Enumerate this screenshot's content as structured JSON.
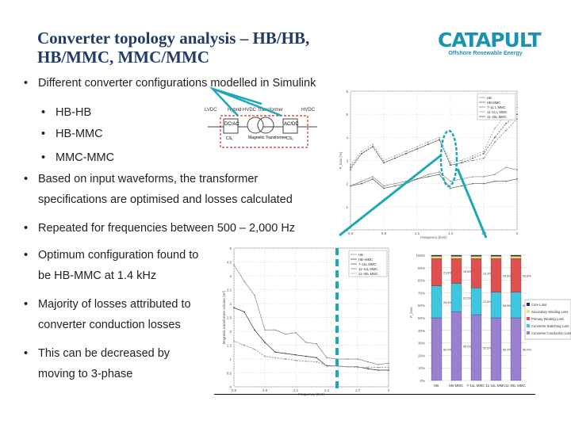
{
  "title": [
    "Converter topology analysis – HB/HB,",
    "HB/MMC, MMC/MMC"
  ],
  "logo": {
    "name": "CATAPULT",
    "tagline": "Offshore Renewable Energy"
  },
  "bullets": [
    {
      "text": "Different converter configurations modelled in Simulink",
      "level": 1
    },
    {
      "text": "HB-HB",
      "level": 2
    },
    {
      "text": "HB-MMC",
      "level": 2
    },
    {
      "text": "MMC-MMC",
      "level": 2
    },
    {
      "text": [
        "Based on input waveforms, the transformer",
        "specifications are optimised and losses calculated"
      ],
      "level": 1
    },
    {
      "text": "Repeated for frequencies between 500 – 2,000 Hz",
      "level": 1
    },
    {
      "text": [
        "Optimum configuration found to",
        "be HB-MMC at 1.4 kHz"
      ],
      "level": 1
    },
    {
      "text": [
        "Majority of losses attributed to",
        "converter conduction losses"
      ],
      "level": 1
    },
    {
      "text": [
        "This can be decreased by",
        "moving to 3-phase"
      ],
      "level": 1
    }
  ],
  "diagram": {
    "title": "Hybrid HVDC Transformer",
    "left": "LVDC",
    "right": "HVDC",
    "cs1": "DC/AC",
    "cs2": "AC/DC",
    "cs1_label": "CS₁",
    "cs2_label": "CS₂",
    "middle": "Magnetic Transformer"
  },
  "colors": {
    "accent": "#1aa9b5",
    "title": "#1f3a6b",
    "conduction": "#9b7fd0",
    "switching": "#3fc6e0",
    "primary": "#e05050",
    "secondary": "#e8e070",
    "core": "#1a3050"
  },
  "chart_data": [
    {
      "type": "line",
      "xlabel": "Frequency (kHz)",
      "ylabel": "P_loss (%)",
      "xlim": [
        0.5,
        2
      ],
      "ylim": [
        0,
        6
      ],
      "xticks": [
        "0.5",
        "0.8",
        "1.1",
        "1.4",
        "1.7",
        "2"
      ],
      "yticks": [
        "0",
        "1",
        "2",
        "3",
        "4",
        "5",
        "6"
      ],
      "legend_position": "top-right",
      "x": [
        0.5,
        0.6,
        0.7,
        0.8,
        0.9,
        1.0,
        1.1,
        1.2,
        1.3,
        1.4,
        1.5,
        1.6,
        1.7,
        1.8,
        1.9,
        2.0
      ],
      "series": [
        {
          "name": "HB",
          "values": [
            1.9,
            2.1,
            2.3,
            1.9,
            2.0,
            2.1,
            2.2,
            2.4,
            2.5,
            2.1,
            2.2,
            2.3,
            2.3,
            2.4,
            2.7,
            2.6
          ]
        },
        {
          "name": "HB-MMC",
          "values": [
            1.9,
            2.0,
            2.2,
            1.8,
            1.9,
            2.0,
            2.2,
            2.3,
            2.4,
            1.8,
            1.9,
            2.0,
            2.0,
            2.1,
            2.1,
            2.2
          ]
        },
        {
          "name": "7–11 L MMC",
          "values": [
            2.6,
            3.3,
            3.6,
            2.9,
            3.1,
            3.3,
            3.5,
            3.7,
            3.9,
            2.8,
            2.9,
            3.0,
            3.1,
            3.8,
            4.3,
            4.8
          ]
        },
        {
          "name": "11–11 L MMC",
          "values": [
            2.8,
            3.4,
            3.7,
            3.0,
            3.2,
            3.4,
            3.6,
            3.8,
            4.0,
            2.9,
            3.0,
            3.2,
            3.4,
            4.4,
            5.0,
            5.3
          ]
        },
        {
          "name": "11–25L MMC",
          "values": [
            2.7,
            3.3,
            3.6,
            2.9,
            3.1,
            3.3,
            3.5,
            3.7,
            3.9,
            2.8,
            2.9,
            3.1,
            3.3,
            4.0,
            4.6,
            5.0
          ]
        }
      ]
    },
    {
      "type": "line",
      "xlabel": "Frequency (kHz)",
      "ylabel": "Magnetic transformer volume (m³)",
      "xlim": [
        0.5,
        2
      ],
      "ylim": [
        0,
        5
      ],
      "xticks": [
        "0.5",
        "0.8",
        "1.1",
        "1.4",
        "1.7",
        "2"
      ],
      "yticks": [
        "0",
        "0.5",
        "1",
        "1.5",
        "2",
        "2.5",
        "3",
        "3.5",
        "4",
        "4.5",
        "5"
      ],
      "legend_position": "top-right",
      "x": [
        0.5,
        0.6,
        0.7,
        0.8,
        0.9,
        1.0,
        1.1,
        1.2,
        1.3,
        1.4,
        1.5,
        1.6,
        1.7,
        1.8,
        1.9,
        2.0
      ],
      "series": [
        {
          "name": "HB",
          "values": [
            4.4,
            3.8,
            3.3,
            2.05,
            2.05,
            1.9,
            1.95,
            1.6,
            1.55,
            1.05,
            1.0,
            1.0,
            1.0,
            0.9,
            0.8,
            0.85
          ]
        },
        {
          "name": "HB–MMC",
          "values": [
            2.85,
            2.7,
            2.05,
            1.6,
            1.25,
            1.2,
            1.15,
            1.1,
            1.05,
            0.75,
            0.75,
            0.72,
            0.72,
            0.65,
            0.6,
            0.6
          ]
        },
        {
          "name": "7–11L MMC",
          "values": [
            1.65,
            1.5,
            1.35,
            1.1,
            1.05,
            1.0,
            0.95,
            0.92,
            0.9,
            0.77,
            0.75,
            0.72,
            0.7,
            0.7,
            0.7,
            0.7
          ]
        },
        {
          "name": "11–11L MMC",
          "values": [
            1.65,
            1.5,
            1.35,
            1.1,
            1.05,
            1.0,
            0.95,
            0.92,
            0.9,
            0.77,
            0.75,
            0.72,
            0.7,
            0.7,
            0.7,
            0.7
          ]
        },
        {
          "name": "11–25L MMC",
          "values": [
            1.65,
            1.5,
            1.35,
            1.1,
            1.05,
            1.0,
            0.95,
            0.92,
            0.9,
            0.77,
            0.75,
            0.72,
            0.7,
            0.7,
            0.7,
            0.7
          ]
        }
      ]
    },
    {
      "type": "bar",
      "stacked": true,
      "ylabel": "P_loss",
      "ylim": [
        0,
        100
      ],
      "yticks": [
        "0%",
        "10%",
        "20%",
        "30%",
        "40%",
        "50%",
        "60%",
        "70%",
        "80%",
        "90%",
        "100%"
      ],
      "categories": [
        "HB",
        "HB-MMC",
        "7-11L MMC",
        "11-11L MMC",
        "11-25L MMC"
      ],
      "legend_position": "right",
      "series": [
        {
          "name": "Converter Conduction Loss",
          "values": [
            50.0,
            55.0,
            52.5,
            50.0,
            50.0
          ]
        },
        {
          "name": "Converter Switching Loss",
          "values": [
            25.5,
            22.5,
            21.5,
            20.5,
            20.5
          ]
        },
        {
          "name": "Primary Winding Loss",
          "values": [
            21.8,
            19.8,
            23.3,
            26.8,
            26.8
          ]
        },
        {
          "name": "Secondary Winding Loss",
          "values": [
            1.9,
            1.9,
            1.9,
            1.9,
            1.9
          ]
        },
        {
          "name": "Core Loss",
          "values": [
            0.8,
            0.8,
            0.8,
            0.8,
            0.8
          ]
        }
      ]
    }
  ]
}
